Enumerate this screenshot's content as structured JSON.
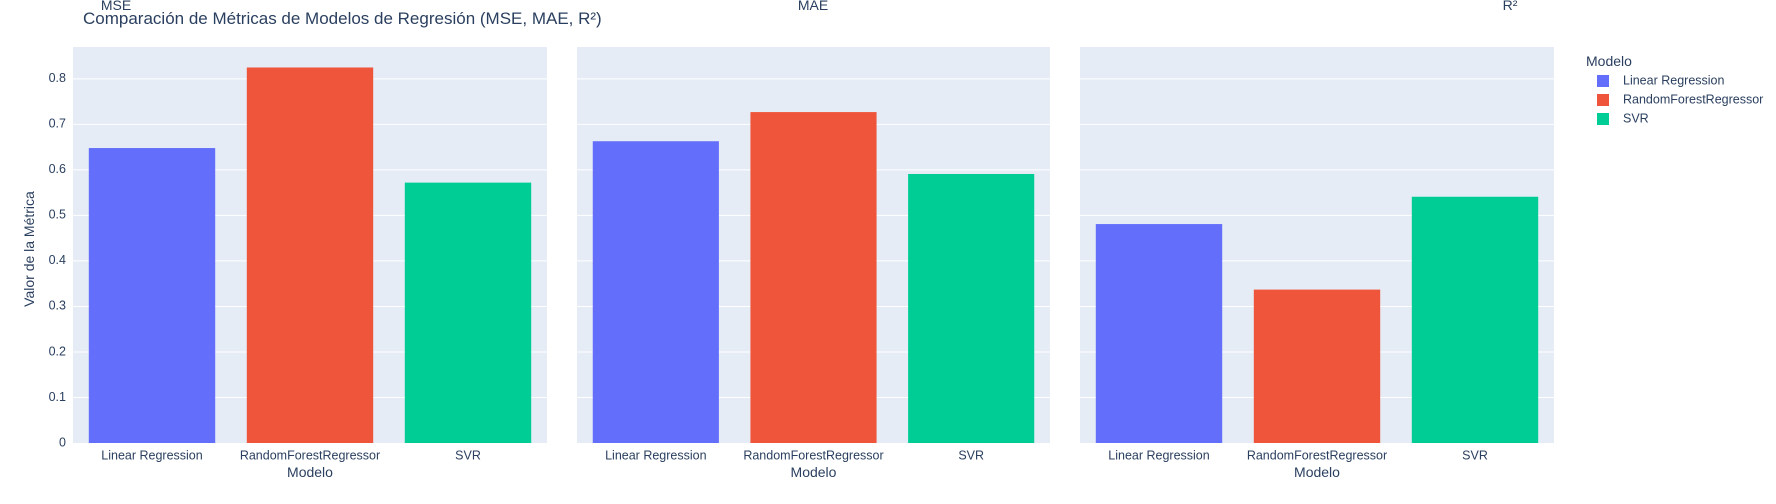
{
  "chart_data": {
    "type": "bar",
    "title": "Comparación de Métricas de Modelos de Regresión (MSE, MAE, R²)",
    "ylabel": "Valor de la Métrica",
    "xlabel": "Modelo",
    "ylim": [
      0,
      0.87
    ],
    "yticks": [
      "0",
      "0.1",
      "0.2",
      "0.3",
      "0.4",
      "0.5",
      "0.6",
      "0.7",
      "0.8"
    ],
    "categories": [
      "Linear Regression",
      "RandomForestRegressor",
      "SVR"
    ],
    "colors": [
      "#636efa",
      "#EF553B",
      "#00cc96"
    ],
    "legend": {
      "title": "Modelo",
      "position": "right",
      "items": [
        "Linear Regression",
        "RandomForestRegressor",
        "SVR"
      ]
    },
    "grid": true,
    "panels": [
      {
        "title": "MSE",
        "values": [
          0.648,
          0.825,
          0.572
        ]
      },
      {
        "title": "MAE",
        "values": [
          0.663,
          0.727,
          0.591
        ]
      },
      {
        "title": "R²",
        "values": [
          0.481,
          0.337,
          0.541
        ]
      }
    ]
  }
}
